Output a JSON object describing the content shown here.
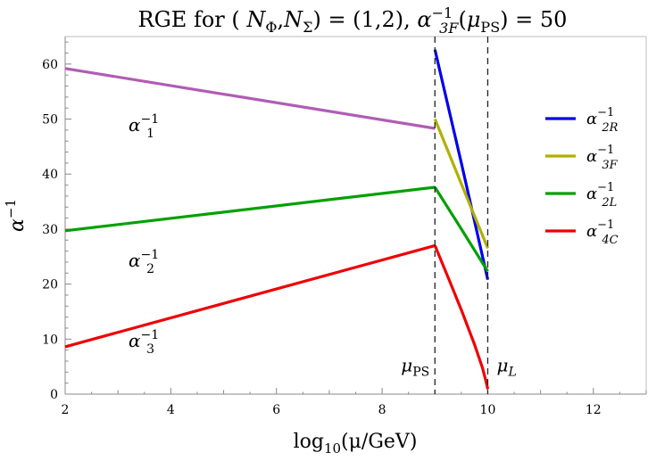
{
  "chart_data": {
    "type": "line",
    "title_parts": [
      "RGE for (",
      "N",
      "Φ",
      ",",
      "N",
      "Σ",
      ") = (1,2),  ",
      "α",
      "3F",
      "−1",
      "(",
      "μ",
      "PS",
      ") = 50"
    ],
    "xlabel_parts": [
      "log",
      "10",
      "(μ/GeV)"
    ],
    "ylabel_parts": [
      "α",
      "−1"
    ],
    "xlim": [
      2,
      13
    ],
    "ylim": [
      0,
      65
    ],
    "x_ticks": [
      2,
      4,
      6,
      8,
      10,
      12
    ],
    "y_ticks": [
      0,
      10,
      20,
      30,
      40,
      50,
      60
    ],
    "grid": false,
    "legend_position": "right",
    "series": [
      {
        "name_base": "α",
        "name_sub": "1",
        "name_sup": "−1",
        "color": "#b05cb5",
        "in_legend": false,
        "x": [
          2,
          9
        ],
        "y": [
          59.2,
          48.3
        ]
      },
      {
        "name_base": "α",
        "name_sub": "2",
        "name_sup": "−1",
        "color": "#00a000",
        "in_legend": false,
        "x": [
          2,
          9
        ],
        "y": [
          29.7,
          37.6
        ]
      },
      {
        "name_base": "α",
        "name_sub": "3",
        "name_sup": "−1",
        "color": "#ee0000",
        "in_legend": false,
        "x": [
          2,
          9
        ],
        "y": [
          8.6,
          27.0
        ]
      },
      {
        "name_base": "α",
        "name_sub": "2R",
        "name_sup": "−1",
        "color": "#0000ee",
        "in_legend": true,
        "x": [
          9,
          9.5,
          10
        ],
        "y": [
          62.6,
          42.0,
          20.8
        ]
      },
      {
        "name_base": "α",
        "name_sub": "3F",
        "name_sup": "−1",
        "color": "#b0b000",
        "in_legend": true,
        "x": [
          9,
          9.5,
          10
        ],
        "y": [
          50.0,
          38.2,
          26.5
        ]
      },
      {
        "name_base": "α",
        "name_sub": "2L",
        "name_sup": "−1",
        "color": "#00a000",
        "in_legend": true,
        "x": [
          9,
          9.5,
          10
        ],
        "y": [
          37.6,
          30.0,
          22.3
        ]
      },
      {
        "name_base": "α",
        "name_sub": "4C",
        "name_sup": "−1",
        "color": "#ee0000",
        "in_legend": true,
        "x": [
          9,
          9.25,
          9.5,
          9.75,
          9.9,
          9.97,
          10
        ],
        "y": [
          27.0,
          21.2,
          15.3,
          9.0,
          4.8,
          2.2,
          0.9
        ]
      }
    ],
    "vertical_lines": [
      {
        "x": 9,
        "label_base": "μ",
        "label_sub": "PS",
        "label_side": "left"
      },
      {
        "x": 10,
        "label_base": "μ",
        "label_sub": "L",
        "label_side": "right"
      }
    ],
    "curve_labels": [
      {
        "series": 0,
        "at_x": 3.2,
        "at_y": 47.8
      },
      {
        "series": 1,
        "at_x": 3.2,
        "at_y": 23.2
      },
      {
        "series": 2,
        "at_x": 3.2,
        "at_y": 8.6
      }
    ]
  }
}
